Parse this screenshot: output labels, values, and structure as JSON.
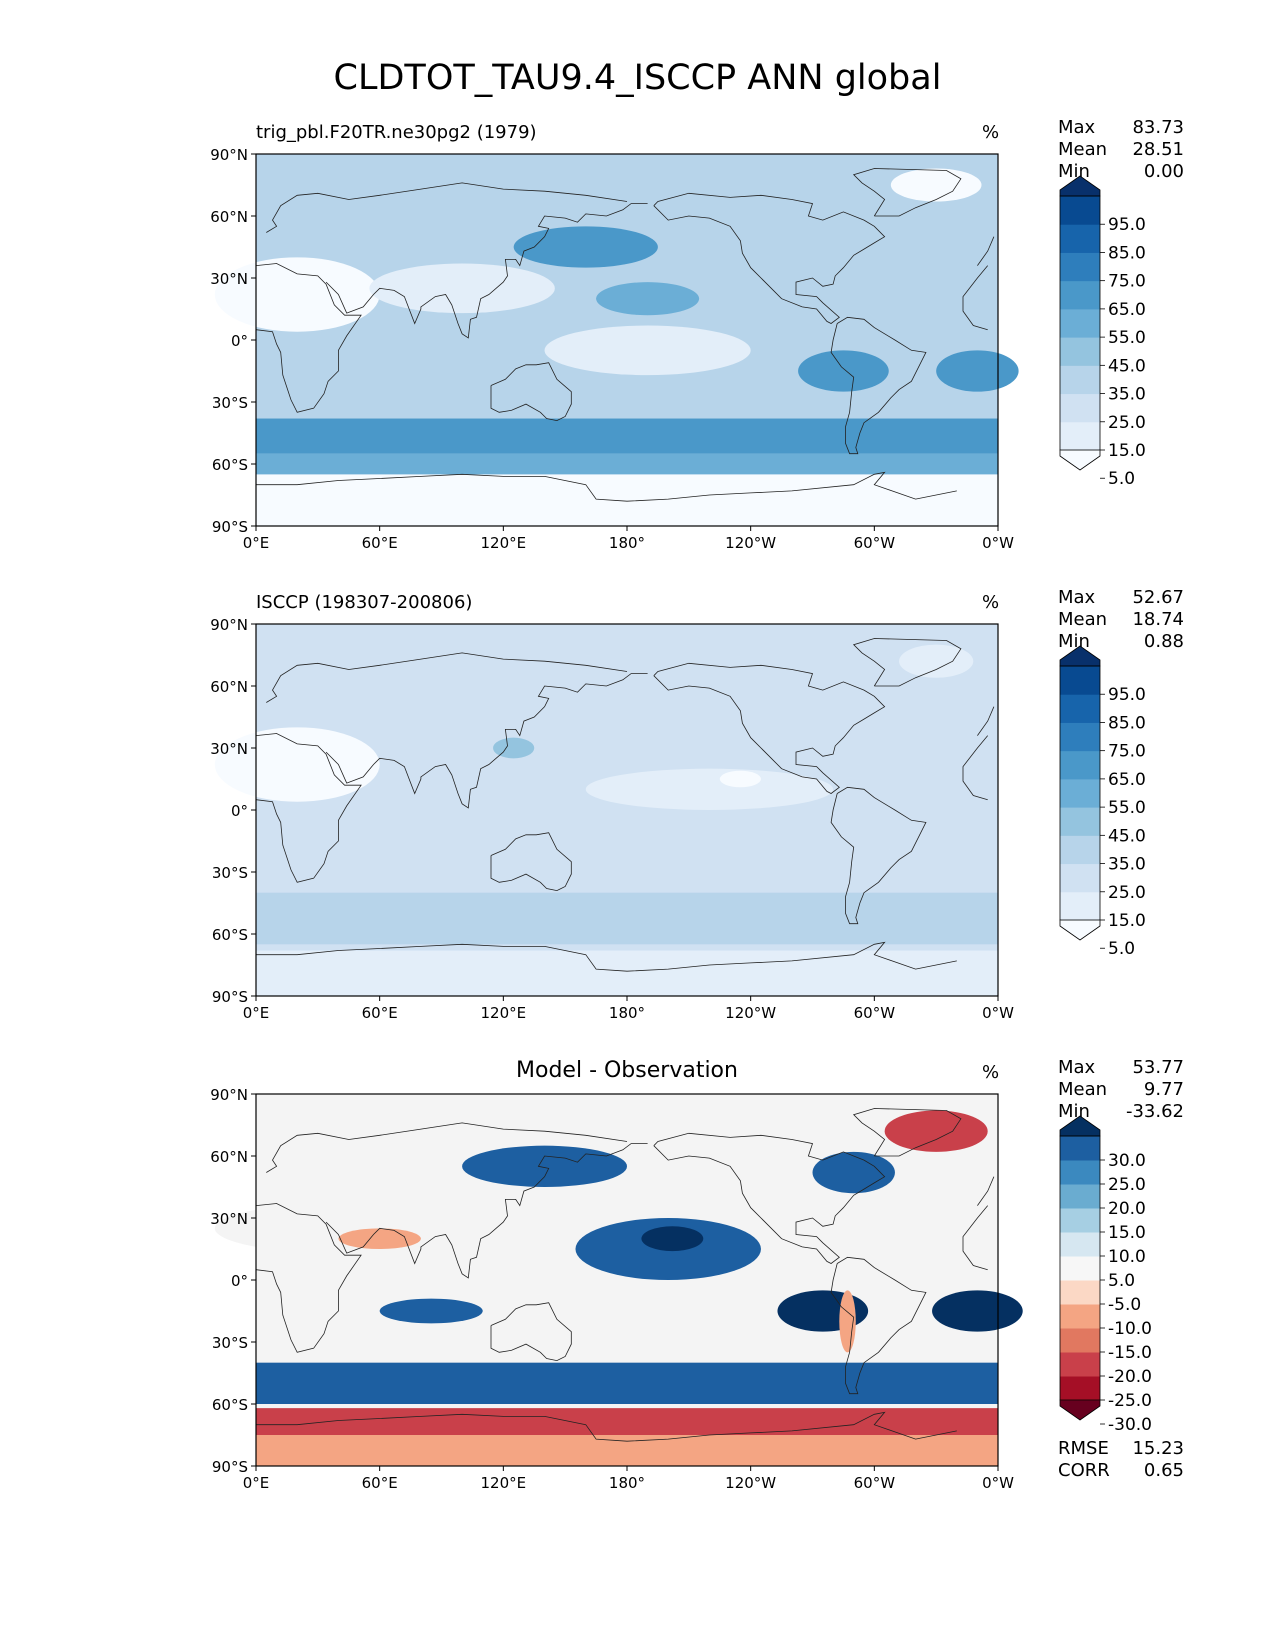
{
  "figure": {
    "title": "CLDTOT_TAU9.4_ISCCP ANN global"
  },
  "axes": {
    "lat_ticks": [
      "90°N",
      "60°N",
      "30°N",
      "0°",
      "30°S",
      "60°S",
      "90°S"
    ],
    "lon_ticks": [
      "0°E",
      "60°E",
      "120°E",
      "180°",
      "120°W",
      "60°W",
      "0°W"
    ]
  },
  "panels": [
    {
      "id": "model",
      "left_label": "trig_pbl.F20TR.ne30pg2 (1979)",
      "center_label": "",
      "units": "%",
      "stats": [
        {
          "k": "Max",
          "v": "83.73"
        },
        {
          "k": "Mean",
          "v": "28.51"
        },
        {
          "k": "Min",
          "v": "0.00"
        }
      ],
      "colorbar": {
        "labels": [
          "95.0",
          "85.0",
          "75.0",
          "65.0",
          "55.0",
          "45.0",
          "35.0",
          "25.0",
          "15.0",
          "5.0"
        ],
        "colors": [
          "#f7fbff",
          "#e3eef9",
          "#d0e1f2",
          "#b7d4ea",
          "#94c4df",
          "#6baed6",
          "#4a98c9",
          "#2e7ebc",
          "#1764ab",
          "#084a91",
          "#08306b"
        ]
      },
      "field_colors": {
        "base": "#b7d4ea",
        "light": "#e3eef9",
        "vlight": "#f7fbff",
        "mid": "#6baed6",
        "dark": "#4a98c9"
      }
    },
    {
      "id": "obs",
      "left_label": "ISCCP (198307-200806)",
      "center_label": "",
      "units": "%",
      "stats": [
        {
          "k": "Max",
          "v": "52.67"
        },
        {
          "k": "Mean",
          "v": "18.74"
        },
        {
          "k": "Min",
          "v": "0.88"
        }
      ],
      "colorbar": {
        "labels": [
          "95.0",
          "85.0",
          "75.0",
          "65.0",
          "55.0",
          "45.0",
          "35.0",
          "25.0",
          "15.0",
          "5.0"
        ],
        "colors": [
          "#f7fbff",
          "#e3eef9",
          "#d0e1f2",
          "#b7d4ea",
          "#94c4df",
          "#6baed6",
          "#4a98c9",
          "#2e7ebc",
          "#1764ab",
          "#084a91",
          "#08306b"
        ]
      },
      "field_colors": {
        "base": "#d0e1f2",
        "light": "#e3eef9",
        "vlight": "#f7fbff",
        "mid": "#b7d4ea",
        "dark": "#94c4df"
      }
    },
    {
      "id": "diff",
      "left_label": "",
      "center_label": "Model - Observation",
      "units": "%",
      "stats": [
        {
          "k": "Max",
          "v": "53.77"
        },
        {
          "k": "Mean",
          "v": "9.77"
        },
        {
          "k": "Min",
          "v": "-33.62"
        }
      ],
      "colorbar": {
        "labels": [
          "30.0",
          "25.0",
          "20.0",
          "15.0",
          "10.0",
          "5.0",
          "-5.0",
          "-10.0",
          "-15.0",
          "-20.0",
          "-25.0",
          "-30.0"
        ],
        "colors": [
          "#67001f",
          "#a50f26",
          "#c9404a",
          "#e17860",
          "#f4a583",
          "#fbd8c5",
          "#f7f7f7",
          "#d6e7f1",
          "#a6cfe3",
          "#6aacd0",
          "#3b89bf",
          "#1d5fa1",
          "#053061"
        ]
      },
      "field_colors": {
        "base": "#f4f4f4",
        "light": "#d6e7f1",
        "mid": "#6aacd0",
        "dark": "#1d5fa1",
        "vdark": "#053061",
        "red": "#c9404a",
        "pink": "#f4a583"
      }
    }
  ],
  "error_stats": [
    {
      "k": "RMSE",
      "v": "15.23"
    },
    {
      "k": "CORR",
      "v": "0.65"
    }
  ]
}
